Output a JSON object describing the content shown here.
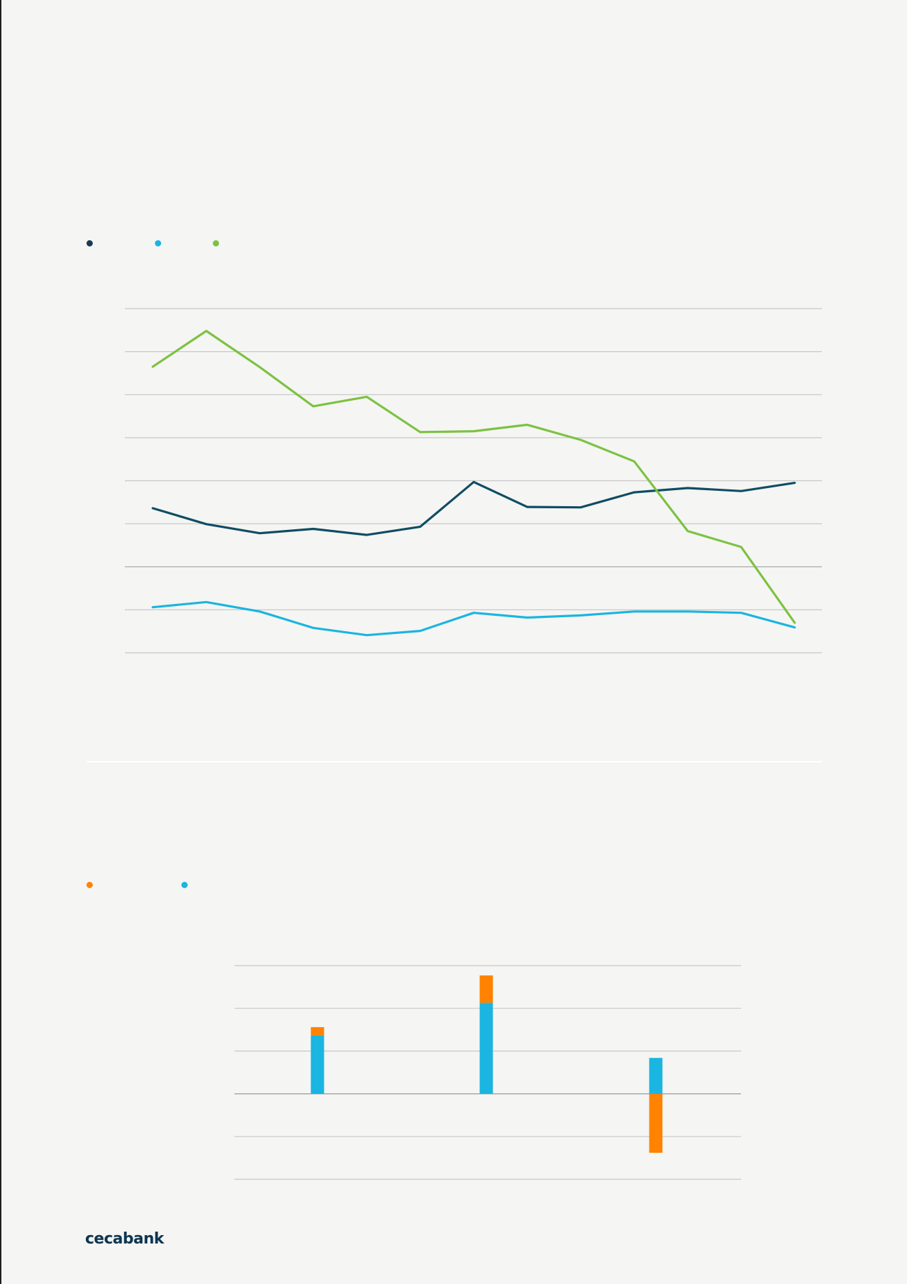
{
  "colors": {
    "dark_blue": "#0e4d64",
    "light_blue": "#1ab5e0",
    "green": "#7cc242",
    "orange": "#ff8200",
    "grid": "#c8c8c8"
  },
  "chart_data": [
    {
      "type": "line",
      "title": "",
      "xlabel": "",
      "ylabel": "",
      "grid": true,
      "legend_placement": "top-left",
      "x": [
        1,
        2,
        3,
        4,
        5,
        6,
        7,
        8,
        9,
        10,
        11,
        12,
        13
      ],
      "ylim": [
        0,
        8
      ],
      "series": [
        {
          "name": "",
          "color": "#0e4d64",
          "values": [
            3.36,
            2.99,
            2.78,
            2.88,
            2.74,
            2.93,
            3.97,
            3.39,
            3.38,
            3.73,
            3.83,
            3.76,
            3.95
          ]
        },
        {
          "name": "",
          "color": "#1ab5e0",
          "values": [
            1.06,
            1.18,
            0.96,
            0.58,
            0.41,
            0.51,
            0.93,
            0.82,
            0.87,
            0.96,
            0.96,
            0.93,
            0.59
          ]
        },
        {
          "name": "",
          "color": "#7cc242",
          "values": [
            6.65,
            7.48,
            6.64,
            5.73,
            5.95,
            5.13,
            5.15,
            5.3,
            4.95,
            4.45,
            2.83,
            2.46,
            0.7
          ]
        }
      ]
    },
    {
      "type": "bar",
      "stacked": true,
      "title": "",
      "xlabel": "",
      "ylabel": "",
      "grid": true,
      "legend_placement": "top-left",
      "categories": [
        "",
        "",
        ""
      ],
      "ylim": [
        -2,
        3
      ],
      "series": [
        {
          "name": "",
          "color": "#1ab5e0",
          "values": [
            1.37,
            2.13,
            0.84
          ]
        },
        {
          "name": "",
          "color": "#ff8200",
          "values": [
            0.19,
            0.64,
            -1.38
          ]
        }
      ]
    }
  ],
  "logo": {
    "text": "cecabank"
  }
}
